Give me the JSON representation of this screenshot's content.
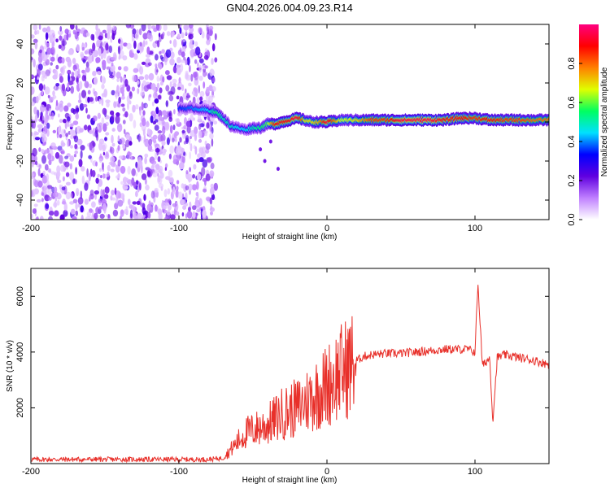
{
  "title": "GN04.2026.004.09.23.R14",
  "chart_data": [
    {
      "type": "heatmap",
      "xlabel": "Height of straight line (km)",
      "ylabel": "Frequency (Hz)",
      "xlim": [
        -200,
        150
      ],
      "ylim": [
        -50,
        50
      ],
      "x_ticks": [
        -200,
        -100,
        0,
        100
      ],
      "y_ticks": [
        -40,
        -20,
        0,
        20,
        40
      ],
      "colorbar": {
        "label": "Normalized spectral amplitude",
        "range": [
          0,
          1
        ],
        "ticks": [
          "0.0",
          "0.2",
          "0.4",
          "0.6",
          "0.8"
        ],
        "colors": [
          "#ffffff",
          "#c080ff",
          "#6000e0",
          "#0000ff",
          "#00e0ff",
          "#00ff60",
          "#e0ff00",
          "#ff8000",
          "#ff0000",
          "#ff0080"
        ]
      },
      "noise_region_x": [
        -200,
        -75
      ],
      "ridge": {
        "x": [
          -100,
          -90,
          -80,
          -75,
          -70,
          -65,
          -60,
          -55,
          -50,
          -45,
          -40,
          -35,
          -30,
          -25,
          -20,
          -15,
          -10,
          -5,
          0,
          10,
          20,
          30,
          40,
          50,
          60,
          70,
          80,
          90,
          100,
          110,
          120,
          130,
          140,
          150
        ],
        "frequency": [
          7,
          7,
          6,
          5,
          2,
          -2,
          -3,
          -4,
          -3,
          -3,
          -1,
          -1,
          0,
          1,
          2,
          1,
          0,
          0,
          0,
          1,
          1,
          1,
          1,
          1,
          1,
          1,
          1,
          2,
          2,
          1,
          1,
          1,
          1,
          1
        ],
        "amplitude": [
          0.35,
          0.4,
          0.45,
          0.55,
          0.5,
          0.5,
          0.45,
          0.45,
          0.5,
          0.55,
          0.6,
          0.9,
          0.9,
          0.9,
          0.95,
          0.7,
          0.7,
          0.75,
          0.95,
          0.65,
          0.7,
          0.85,
          0.85,
          0.95,
          0.95,
          0.95,
          0.9,
          0.9,
          0.85,
          0.9,
          0.85,
          0.85,
          0.8,
          0.8
        ]
      }
    },
    {
      "type": "line",
      "xlabel": "Height of straight line (km)",
      "ylabel": "SNR (10 * v/v)",
      "xlim": [
        -200,
        150
      ],
      "ylim": [
        0,
        7000
      ],
      "x_ticks": [
        -200,
        -100,
        0,
        100
      ],
      "y_ticks": [
        2000,
        4000,
        6000
      ],
      "series": [
        {
          "name": "SNR",
          "color": "#e8302a",
          "x": [
            -200,
            -150,
            -100,
            -80,
            -70,
            -65,
            -60,
            -55,
            -50,
            -45,
            -40,
            -35,
            -30,
            -25,
            -20,
            -15,
            -10,
            -5,
            0,
            5,
            10,
            15,
            20,
            25,
            30,
            40,
            50,
            60,
            70,
            80,
            90,
            95,
            100,
            102,
            105,
            110,
            112,
            115,
            120,
            130,
            140,
            150
          ],
          "values": [
            150,
            150,
            150,
            150,
            200,
            500,
            800,
            1100,
            1200,
            1300,
            1400,
            1600,
            1800,
            1900,
            2000,
            2200,
            2400,
            2600,
            2800,
            3100,
            3300,
            3500,
            3700,
            3850,
            3900,
            3950,
            3950,
            4000,
            4050,
            4100,
            4100,
            4100,
            4000,
            6500,
            3500,
            3800,
            1500,
            3800,
            3900,
            3800,
            3700,
            3550
          ]
        }
      ]
    }
  ]
}
